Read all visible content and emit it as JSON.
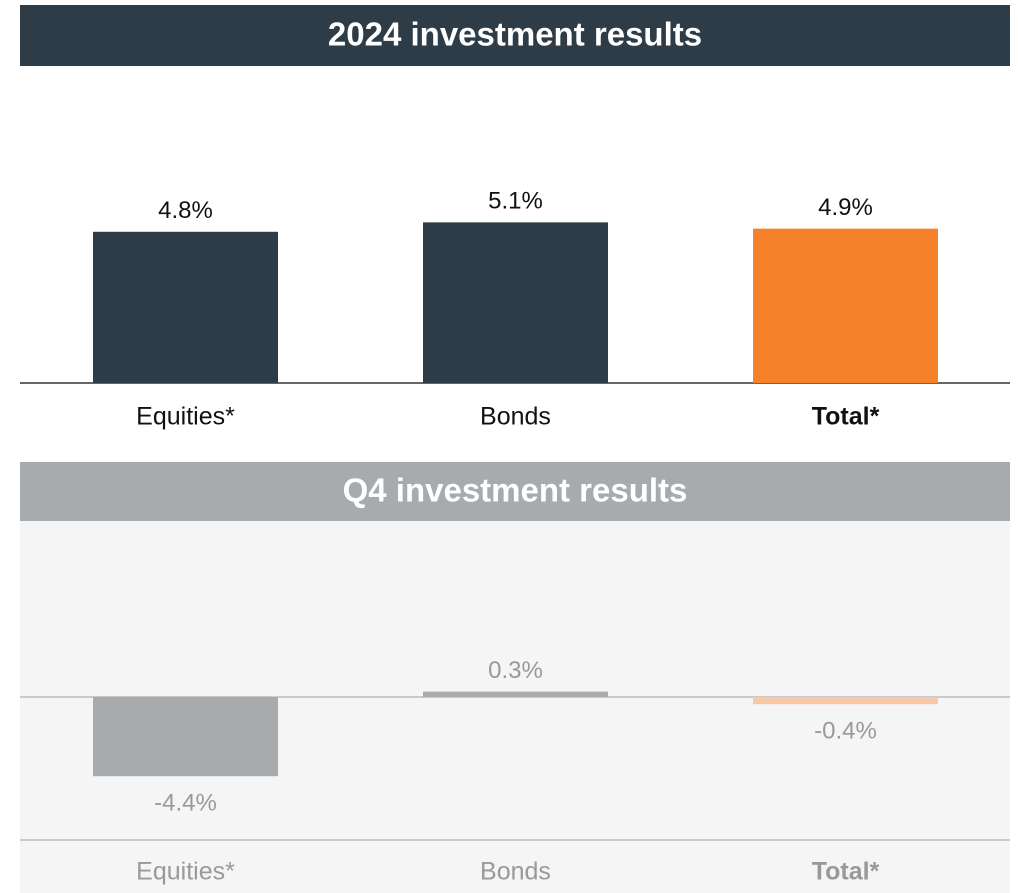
{
  "chart_data": [
    {
      "type": "bar",
      "title": "2024 investment results",
      "categories": [
        "Equities*",
        "Bonds",
        "Total*"
      ],
      "values": [
        4.8,
        5.1,
        4.9
      ],
      "value_labels": [
        "4.8%",
        "5.1%",
        "4.9%"
      ],
      "colors": [
        "#2d3c47",
        "#2d3c47",
        "#f5812a"
      ]
    },
    {
      "type": "bar",
      "title": "Q4 investment results",
      "categories": [
        "Equities*",
        "Bonds",
        "Total*"
      ],
      "values": [
        -4.4,
        0.3,
        -0.4
      ],
      "value_labels": [
        "-4.4%",
        "0.3%",
        "-0.4%"
      ],
      "colors": [
        "#a7abae",
        "#a7abae",
        "#f7c9a6"
      ]
    }
  ]
}
